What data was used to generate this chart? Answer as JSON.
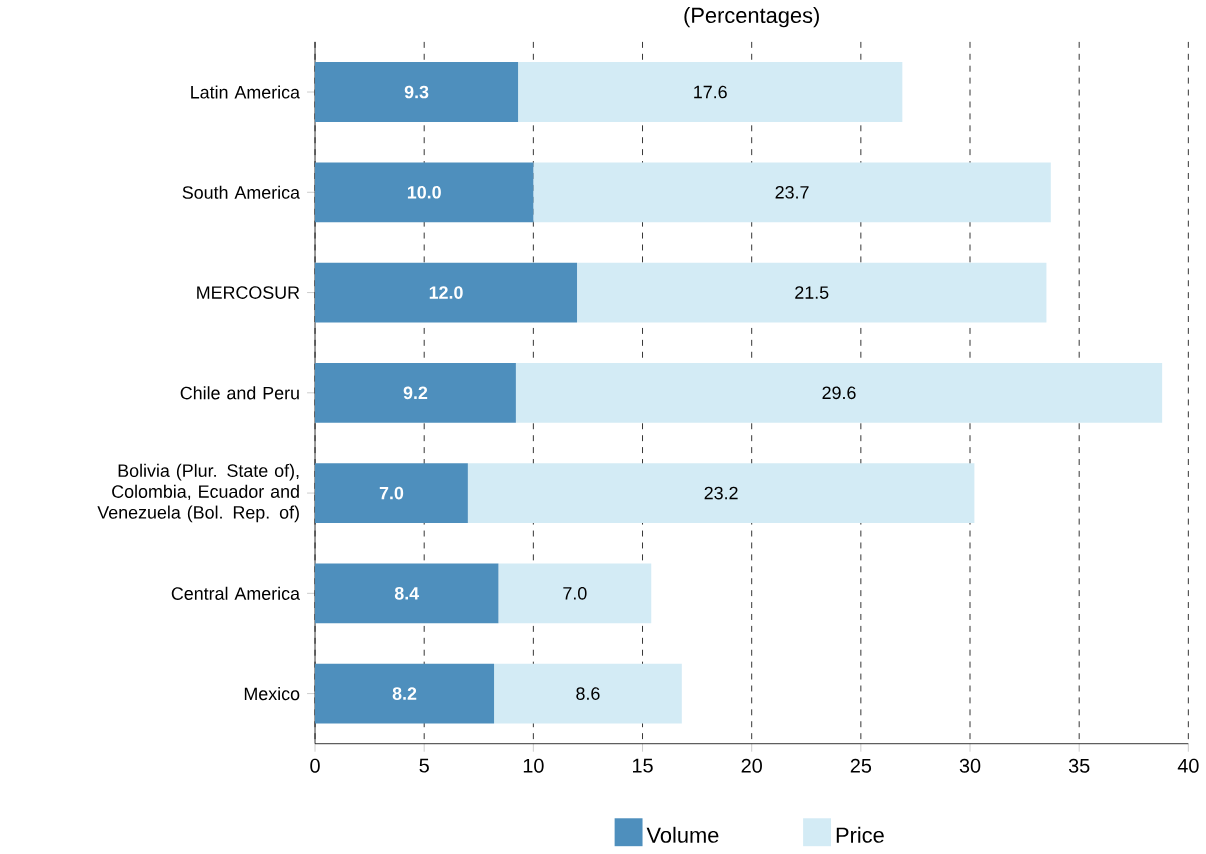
{
  "chart_data": {
    "type": "bar",
    "orientation": "horizontal",
    "stacked": true,
    "title": "(Percentages)",
    "categories": [
      "Latin America",
      "South America",
      "MERCOSUR",
      "Chile and Peru",
      "Bolivia (Plur. State of), Colombia, Ecuador and Venezuela (Bol. Rep. of)",
      "Central America",
      "Mexico"
    ],
    "series": [
      {
        "name": "Volume",
        "color": "#4e8fbd",
        "values": [
          9.3,
          10.0,
          12.0,
          9.2,
          7.0,
          8.4,
          8.2
        ],
        "value_labels": [
          "9.3",
          "10.0",
          "12.0",
          "9.2",
          "7.0",
          "8.4",
          "8.2"
        ]
      },
      {
        "name": "Price",
        "color": "#d3ebf5",
        "values": [
          17.6,
          23.7,
          21.5,
          29.6,
          23.2,
          7.0,
          8.6
        ],
        "value_labels": [
          "17.6",
          "23.7",
          "21.5",
          "29.6",
          "23.2",
          "7.0",
          "8.6"
        ]
      }
    ],
    "xlim": [
      0,
      40
    ],
    "xticks": [
      0,
      5,
      10,
      15,
      20,
      25,
      30,
      35,
      40
    ],
    "grid": "x",
    "legend": "bottom"
  }
}
